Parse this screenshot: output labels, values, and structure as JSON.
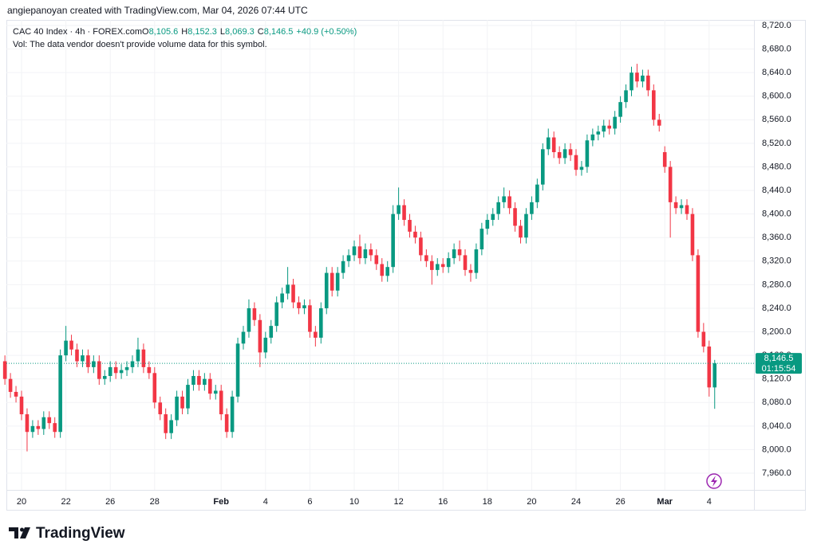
{
  "attribution": "angiepanoyan created with TradingView.com, Mar 04, 2026 07:44 UTC",
  "brand": "TradingView",
  "chart_data": {
    "type": "candlestick",
    "legend_title": "CAC 40 Index · 4h · FOREX.com",
    "ohlc_legend": [
      {
        "prefix": "O",
        "value": "8,105.6"
      },
      {
        "prefix": "H",
        "value": "8,152.3"
      },
      {
        "prefix": "L",
        "value": "8,069.3"
      },
      {
        "prefix": "C",
        "value": "8,146.5"
      }
    ],
    "change": "+40.9 (+0.50%)",
    "note": "Vol: The data vendor doesn't provide volume data for this symbol.",
    "up_color": "#089981",
    "down_color": "#f23645",
    "grid": true,
    "last_value_label": "8,146.5",
    "countdown": "01:15:54",
    "ylim": [
      7931.6,
      8729.5
    ],
    "yticks": [
      {
        "value": 7960,
        "label": "7,960.0"
      },
      {
        "value": 8000,
        "label": "8,000.0"
      },
      {
        "value": 8040,
        "label": "8,040.0"
      },
      {
        "value": 8080,
        "label": "8,080.0"
      },
      {
        "value": 8120,
        "label": "8,120.0"
      },
      {
        "value": 8160,
        "label": "8,160.0"
      },
      {
        "value": 8200,
        "label": "8,200.0"
      },
      {
        "value": 8240,
        "label": "8,240.0"
      },
      {
        "value": 8280,
        "label": "8,280.0"
      },
      {
        "value": 8320,
        "label": "8,320.0"
      },
      {
        "value": 8360,
        "label": "8,360.0"
      },
      {
        "value": 8400,
        "label": "8,400.0"
      },
      {
        "value": 8440,
        "label": "8,440.0"
      },
      {
        "value": 8480,
        "label": "8,480.0"
      },
      {
        "value": 8520,
        "label": "8,520.0"
      },
      {
        "value": 8560,
        "label": "8,560.0"
      },
      {
        "value": 8600,
        "label": "8,600.0"
      },
      {
        "value": 8640,
        "label": "8,640.0"
      },
      {
        "value": 8680,
        "label": "8,680.0"
      },
      {
        "value": 8720,
        "label": "8,720.0"
      }
    ],
    "categories": [
      null,
      null,
      null,
      "20",
      null,
      null,
      null,
      null,
      null,
      null,
      null,
      "22",
      null,
      null,
      null,
      null,
      null,
      null,
      null,
      "26",
      null,
      null,
      null,
      null,
      null,
      null,
      null,
      "28",
      null,
      null,
      null,
      null,
      null,
      null,
      null,
      null,
      null,
      null,
      null,
      "Feb",
      null,
      null,
      null,
      null,
      null,
      null,
      null,
      "4",
      null,
      null,
      null,
      null,
      null,
      null,
      null,
      "6",
      null,
      null,
      null,
      null,
      null,
      null,
      null,
      "10",
      null,
      null,
      null,
      null,
      null,
      null,
      null,
      "12",
      null,
      null,
      null,
      null,
      null,
      null,
      null,
      "16",
      null,
      null,
      null,
      null,
      null,
      null,
      null,
      "18",
      null,
      null,
      null,
      null,
      null,
      null,
      null,
      "20",
      null,
      null,
      null,
      null,
      null,
      null,
      null,
      "24",
      null,
      null,
      null,
      null,
      null,
      null,
      null,
      "26",
      null,
      null,
      null,
      null,
      null,
      null,
      null,
      "Mar",
      null,
      null,
      null,
      null,
      null,
      null,
      null,
      "4",
      null
    ],
    "open": [
      8150,
      8120,
      8098,
      8090,
      8060,
      8030,
      8040,
      8035,
      8055,
      8045,
      8030,
      8160,
      8185,
      8170,
      8150,
      8160,
      8140,
      8150,
      8120,
      8125,
      8140,
      8130,
      8135,
      8140,
      8150,
      8170,
      8140,
      8130,
      8080,
      8060,
      8028,
      8050,
      8090,
      8070,
      8110,
      8125,
      8110,
      8120,
      8095,
      8100,
      8060,
      8030,
      8090,
      8180,
      8200,
      8240,
      8220,
      8165,
      8190,
      8210,
      8250,
      8265,
      8280,
      8250,
      8240,
      8245,
      8200,
      8190,
      8240,
      8300,
      8270,
      8300,
      8320,
      8330,
      8345,
      8325,
      8340,
      8330,
      8315,
      8295,
      8310,
      8400,
      8415,
      8390,
      8370,
      8360,
      8330,
      8320,
      8305,
      8315,
      8310,
      8325,
      8340,
      8330,
      8305,
      8300,
      8340,
      8375,
      8390,
      8400,
      8420,
      8430,
      8410,
      8380,
      8360,
      8400,
      8420,
      8450,
      8510,
      8530,
      8505,
      8495,
      8510,
      8500,
      8475,
      8480,
      8525,
      8535,
      8540,
      8550,
      8545,
      8565,
      8590,
      8610,
      8640,
      8625,
      8635,
      8610,
      8560,
      8505,
      8480,
      8420,
      8410,
      8415,
      8400,
      8330,
      8200,
      8175,
      8105.6
    ],
    "high": [
      8160,
      8130,
      8108,
      8100,
      8070,
      8050,
      8050,
      8065,
      8065,
      8055,
      8170,
      8210,
      8195,
      8180,
      8170,
      8170,
      8160,
      8160,
      8135,
      8150,
      8150,
      8145,
      8150,
      8160,
      8190,
      8180,
      8150,
      8140,
      8090,
      8070,
      8060,
      8100,
      8100,
      8120,
      8135,
      8135,
      8130,
      8130,
      8110,
      8110,
      8070,
      8100,
      8190,
      8210,
      8255,
      8250,
      8230,
      8200,
      8220,
      8260,
      8275,
      8310,
      8290,
      8260,
      8255,
      8255,
      8210,
      8250,
      8310,
      8310,
      8310,
      8330,
      8340,
      8355,
      8365,
      8350,
      8350,
      8340,
      8325,
      8320,
      8415,
      8445,
      8425,
      8400,
      8380,
      8370,
      8340,
      8330,
      8325,
      8325,
      8335,
      8350,
      8355,
      8340,
      8315,
      8350,
      8385,
      8400,
      8410,
      8430,
      8445,
      8440,
      8420,
      8390,
      8410,
      8430,
      8460,
      8520,
      8545,
      8540,
      8515,
      8520,
      8520,
      8510,
      8490,
      8535,
      8545,
      8550,
      8560,
      8560,
      8575,
      8600,
      8620,
      8650,
      8655,
      8645,
      8645,
      8620,
      8570,
      8515,
      8490,
      8430,
      8425,
      8425,
      8410,
      8340,
      8215,
      8185,
      8152.3
    ],
    "low": [
      8110,
      8088,
      8080,
      8050,
      7997,
      8020,
      8025,
      8025,
      8035,
      8020,
      8020,
      8150,
      8160,
      8140,
      8140,
      8130,
      8130,
      8110,
      8110,
      8115,
      8120,
      8120,
      8125,
      8130,
      8140,
      8130,
      8120,
      8070,
      8050,
      8018,
      8018,
      8040,
      8060,
      8060,
      8100,
      8100,
      8100,
      8085,
      8085,
      8050,
      8020,
      8020,
      8080,
      8170,
      8190,
      8210,
      8140,
      8155,
      8180,
      8200,
      8240,
      8255,
      8240,
      8230,
      8230,
      8190,
      8175,
      8180,
      8230,
      8260,
      8260,
      8290,
      8310,
      8320,
      8315,
      8315,
      8320,
      8305,
      8285,
      8285,
      8300,
      8390,
      8380,
      8360,
      8350,
      8320,
      8310,
      8280,
      8295,
      8300,
      8300,
      8315,
      8320,
      8295,
      8285,
      8290,
      8330,
      8365,
      8380,
      8390,
      8410,
      8400,
      8370,
      8350,
      8350,
      8390,
      8410,
      8440,
      8500,
      8495,
      8485,
      8485,
      8490,
      8465,
      8465,
      8470,
      8515,
      8525,
      8530,
      8535,
      8535,
      8555,
      8580,
      8600,
      8615,
      8615,
      8600,
      8550,
      8540,
      8470,
      8360,
      8400,
      8400,
      8390,
      8320,
      8190,
      8165,
      8090,
      8069.3
    ],
    "close": [
      8120,
      8098,
      8090,
      8060,
      8030,
      8040,
      8035,
      8055,
      8045,
      8030,
      8160,
      8185,
      8170,
      8150,
      8160,
      8140,
      8150,
      8120,
      8125,
      8140,
      8130,
      8135,
      8140,
      8150,
      8170,
      8140,
      8130,
      8080,
      8060,
      8028,
      8050,
      8090,
      8070,
      8110,
      8125,
      8110,
      8120,
      8095,
      8100,
      8060,
      8030,
      8090,
      8180,
      8200,
      8240,
      8220,
      8165,
      8190,
      8210,
      8250,
      8265,
      8280,
      8250,
      8240,
      8245,
      8200,
      8190,
      8240,
      8300,
      8270,
      8300,
      8320,
      8330,
      8345,
      8325,
      8340,
      8330,
      8315,
      8295,
      8310,
      8400,
      8415,
      8390,
      8370,
      8360,
      8330,
      8320,
      8305,
      8315,
      8310,
      8325,
      8340,
      8330,
      8305,
      8300,
      8340,
      8375,
      8390,
      8400,
      8420,
      8430,
      8410,
      8380,
      8360,
      8400,
      8420,
      8450,
      8510,
      8530,
      8505,
      8495,
      8510,
      8500,
      8475,
      8480,
      8525,
      8535,
      8540,
      8550,
      8545,
      8565,
      8590,
      8610,
      8640,
      8625,
      8635,
      8610,
      8560,
      8550,
      8480,
      8420,
      8410,
      8415,
      8400,
      8330,
      8200,
      8175,
      8105.6,
      8146.5
    ]
  }
}
